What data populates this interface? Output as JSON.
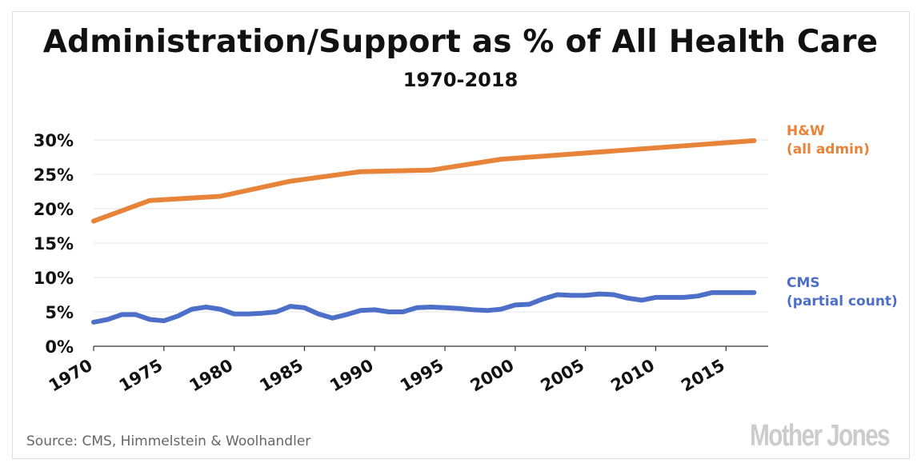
{
  "chart_data": {
    "type": "line",
    "title": "Administration/Support as % of All Health Care",
    "subtitle": "1970-2018",
    "xlim": [
      1970,
      2018
    ],
    "ylim": [
      0,
      30
    ],
    "y_ticks": [
      0,
      5,
      10,
      15,
      20,
      25,
      30
    ],
    "y_tick_labels": [
      "0%",
      "5%",
      "10%",
      "15%",
      "20%",
      "25%",
      "30%"
    ],
    "x_ticks": [
      1970,
      1975,
      1980,
      1985,
      1990,
      1995,
      2000,
      2005,
      2010,
      2015
    ],
    "x_tick_labels": [
      "1970",
      "1975",
      "1980",
      "1985",
      "1990",
      "1995",
      "2000",
      "2005",
      "2010",
      "2015"
    ],
    "grid": true,
    "series": [
      {
        "name": "H&W",
        "label_line2": "(all admin)",
        "color": "#e8843a",
        "x": [
          1970,
          1974,
          1979,
          1984,
          1989,
          1994,
          1999,
          2017
        ],
        "values": [
          18.2,
          21.2,
          21.8,
          24.0,
          25.4,
          25.6,
          27.2,
          29.9
        ]
      },
      {
        "name": "CMS",
        "label_line2": "(partial count)",
        "color": "#4e6fc8",
        "x": [
          1970,
          1971,
          1972,
          1973,
          1974,
          1975,
          1976,
          1977,
          1978,
          1979,
          1980,
          1981,
          1982,
          1983,
          1984,
          1985,
          1986,
          1987,
          1988,
          1989,
          1990,
          1991,
          1992,
          1993,
          1994,
          1995,
          1996,
          1997,
          1998,
          1999,
          2000,
          2001,
          2002,
          2003,
          2004,
          2005,
          2006,
          2007,
          2008,
          2009,
          2010,
          2011,
          2012,
          2013,
          2014,
          2015,
          2016,
          2017
        ],
        "values": [
          3.5,
          3.9,
          4.6,
          4.6,
          3.9,
          3.7,
          4.4,
          5.4,
          5.7,
          5.4,
          4.7,
          4.7,
          4.8,
          5.0,
          5.8,
          5.6,
          4.7,
          4.1,
          4.6,
          5.2,
          5.3,
          5.0,
          5.0,
          5.6,
          5.7,
          5.6,
          5.5,
          5.3,
          5.2,
          5.4,
          6.0,
          6.1,
          6.9,
          7.5,
          7.4,
          7.4,
          7.6,
          7.5,
          7.0,
          6.7,
          7.1,
          7.1,
          7.1,
          7.3,
          7.8,
          7.8,
          7.8,
          7.8
        ]
      }
    ]
  },
  "source": "Source: CMS, Himmelstein & Woolhandler",
  "logo": "Mother Jones"
}
